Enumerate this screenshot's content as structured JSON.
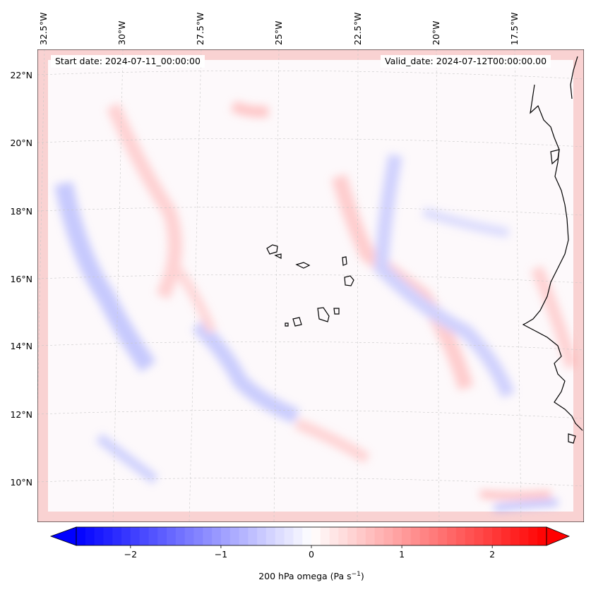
{
  "map": {
    "start_label": "Start date: 2024-07-11_00:00:00",
    "valid_label": "Valid_date: 2024-07-12T00:00:00.00",
    "lon_ticks": [
      "32.5°W",
      "30°W",
      "27.5°W",
      "25°W",
      "22.5°W",
      "20°W",
      "17.5°W"
    ],
    "lat_ticks": [
      "22°N",
      "20°N",
      "18°N",
      "16°N",
      "14°N",
      "12°N",
      "10°N"
    ],
    "coastline_color": "#000000",
    "gridline_color": "#b0b0b0"
  },
  "colorbar": {
    "label_prefix": "200 hPa omega (Pa s",
    "label_exp": "−1",
    "label_suffix": ")",
    "ticks": [
      "−2",
      "−1",
      "0",
      "1",
      "2"
    ],
    "tick_values": [
      -2,
      -1,
      0,
      1,
      2
    ],
    "range": [
      -2.6,
      2.6
    ],
    "colormap": "bwr",
    "min_color": "#0000ff",
    "mid_color": "#ffffff",
    "max_color": "#ff0000"
  }
}
